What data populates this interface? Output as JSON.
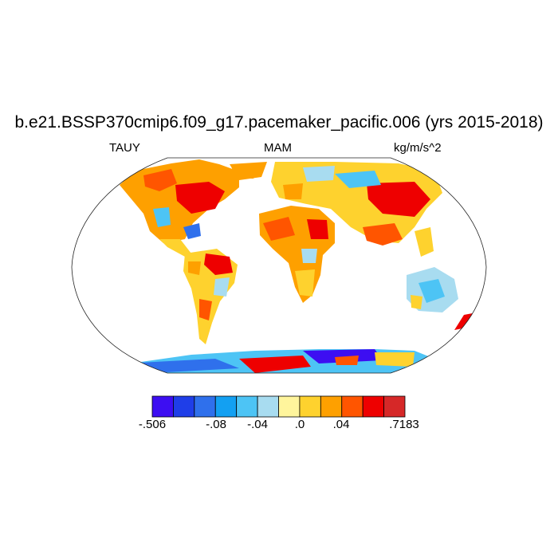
{
  "title": "b.e21.BSSP370cmip6.f09_g17.pacemaker_pacific.006 (yrs 2015-2018)",
  "left_label": "TAUY",
  "center_label": "MAM",
  "right_label": "kg/m/s^2",
  "colorbar": {
    "colors": [
      "#3d0ef2",
      "#1f3ee8",
      "#2f70ec",
      "#13a0f2",
      "#4dc4f5",
      "#a8dcf0",
      "#fff59c",
      "#fed22e",
      "#fea000",
      "#ff5500",
      "#ee0000",
      "#d62828"
    ],
    "tick_labels": [
      "-.506",
      "-.08",
      "-.04",
      ".0",
      ".04",
      ".7183"
    ]
  }
}
